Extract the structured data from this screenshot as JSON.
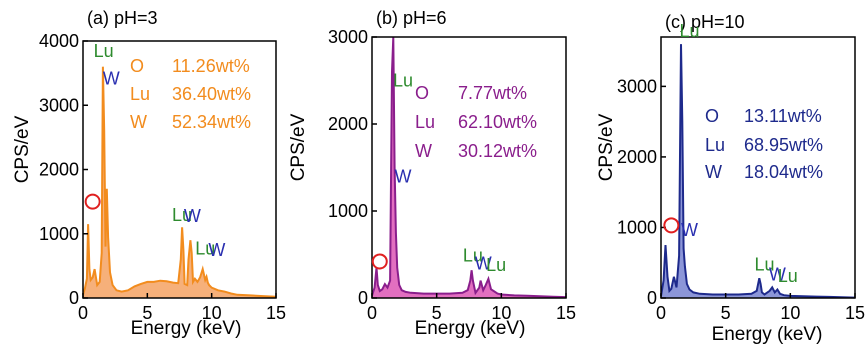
{
  "chart_data": [
    {
      "type": "area",
      "panel_label": "(a) pH=3",
      "xlabel": "Energy (keV)",
      "ylabel": "CPS/eV",
      "xlim": [
        0,
        15
      ],
      "ylim": [
        0,
        4000
      ],
      "xticks": [
        0,
        5,
        10,
        15
      ],
      "yticks": [
        0,
        1000,
        2000,
        3000,
        4000
      ],
      "color": "#F28C1E",
      "fill": "#F6B07A",
      "series": [
        {
          "x": [
            0,
            0.15,
            0.3,
            0.4,
            0.5,
            0.6,
            0.75,
            0.9,
            1.1,
            1.3,
            1.45,
            1.55,
            1.65,
            1.75,
            1.85,
            1.95,
            2.1,
            2.3,
            2.6,
            3,
            3.5,
            4,
            4.5,
            5,
            5.5,
            6,
            6.5,
            7,
            7.4,
            7.6,
            7.7,
            7.8,
            7.9,
            8.1,
            8.2,
            8.35,
            8.45,
            8.55,
            8.7,
            8.9,
            9.1,
            9.3,
            9.5,
            9.6,
            9.7,
            9.8,
            10,
            10.5,
            11,
            11.5,
            12,
            13,
            14,
            15
          ],
          "y": [
            50,
            150,
            300,
            1150,
            450,
            280,
            320,
            450,
            200,
            250,
            700,
            3600,
            2600,
            800,
            1700,
            950,
            400,
            200,
            120,
            100,
            120,
            180,
            220,
            250,
            250,
            270,
            260,
            240,
            230,
            600,
            1100,
            750,
            220,
            200,
            600,
            900,
            700,
            250,
            300,
            250,
            320,
            450,
            280,
            330,
            240,
            200,
            160,
            120,
            100,
            70,
            50,
            40,
            30,
            20
          ]
        }
      ],
      "composition": [
        {
          "element": "O",
          "value": "11.26wt%"
        },
        {
          "element": "Lu",
          "value": "36.40wt%"
        },
        {
          "element": "W",
          "value": "52.34wt%"
        }
      ],
      "annotations": [
        {
          "text": "Lu",
          "x": 1.6,
          "y": 3750,
          "color": "#2E8B2E"
        },
        {
          "text": "W",
          "x": 2.2,
          "y": 3320,
          "color": "#2A2FB0"
        },
        {
          "text": "Lu",
          "x": 7.7,
          "y": 1200,
          "color": "#2E8B2E"
        },
        {
          "text": "W",
          "x": 8.5,
          "y": 1180,
          "color": "#2A2FB0"
        },
        {
          "text": "Lu",
          "x": 9.5,
          "y": 680,
          "color": "#2E8B2E"
        },
        {
          "text": "W",
          "x": 10.4,
          "y": 650,
          "color": "#2A2FB0"
        }
      ],
      "o_marker": {
        "x": 0.75,
        "y": 1500
      }
    },
    {
      "type": "area",
      "panel_label": "(b) pH=6",
      "xlabel": "Energy (keV)",
      "ylabel": "CPS/eV",
      "xlim": [
        0,
        15
      ],
      "ylim": [
        0,
        3000
      ],
      "xticks": [
        0,
        5,
        10,
        15
      ],
      "yticks": [
        0,
        1000,
        2000,
        3000
      ],
      "color": "#8A1E8C",
      "fill": "#E26FC0",
      "series": [
        {
          "x": [
            0,
            0.2,
            0.35,
            0.45,
            0.6,
            0.8,
            1.0,
            1.2,
            1.4,
            1.55,
            1.65,
            1.75,
            1.85,
            1.95,
            2.1,
            2.3,
            2.6,
            3,
            4,
            5,
            6,
            7,
            7.4,
            7.6,
            7.7,
            7.8,
            8,
            8.3,
            8.4,
            8.6,
            8.8,
            9,
            9.2,
            9.4,
            9.7,
            10,
            11,
            12,
            13,
            14,
            15
          ],
          "y": [
            30,
            120,
            350,
            150,
            80,
            100,
            160,
            120,
            200,
            2600,
            3000,
            1500,
            750,
            350,
            150,
            90,
            70,
            60,
            50,
            50,
            50,
            60,
            90,
            200,
            320,
            200,
            60,
            120,
            200,
            90,
            150,
            220,
            100,
            80,
            50,
            40,
            30,
            25,
            20,
            15,
            10
          ]
        }
      ],
      "composition": [
        {
          "element": "O",
          "value": "7.77wt%"
        },
        {
          "element": "Lu",
          "value": "62.10wt%"
        },
        {
          "element": "W",
          "value": "30.12wt%"
        }
      ],
      "annotations": [
        {
          "text": "Lu",
          "x": 2.4,
          "y": 2430,
          "color": "#2E8B2E"
        },
        {
          "text": "W",
          "x": 2.4,
          "y": 1330,
          "color": "#2A2FB0"
        },
        {
          "text": "Lu",
          "x": 7.8,
          "y": 420,
          "color": "#2E8B2E"
        },
        {
          "text": "W",
          "x": 8.6,
          "y": 330,
          "color": "#2A2FB0"
        },
        {
          "text": "Lu",
          "x": 9.6,
          "y": 310,
          "color": "#2E8B2E"
        }
      ],
      "o_marker": {
        "x": 0.6,
        "y": 420
      }
    },
    {
      "type": "area",
      "panel_label": "(c) pH=10",
      "xlabel": "Energy (keV)",
      "ylabel": "CPS/eV",
      "xlim": [
        0,
        15
      ],
      "ylim": [
        0,
        3700
      ],
      "xticks": [
        0,
        5,
        10,
        15
      ],
      "yticks": [
        0,
        1000,
        2000,
        3000
      ],
      "color": "#1E2A8C",
      "fill": "#8C96D8",
      "series": [
        {
          "x": [
            0,
            0.2,
            0.35,
            0.5,
            0.65,
            0.8,
            1.0,
            1.2,
            1.4,
            1.55,
            1.65,
            1.75,
            1.85,
            2.0,
            2.2,
            2.5,
            3,
            4,
            5,
            6,
            7,
            7.4,
            7.6,
            7.7,
            7.8,
            8,
            8.4,
            8.6,
            8.8,
            9.0,
            9.2,
            9.5,
            10,
            11,
            12,
            13,
            14,
            15
          ],
          "y": [
            30,
            250,
            750,
            300,
            100,
            130,
            300,
            150,
            600,
            3600,
            2500,
            700,
            450,
            200,
            120,
            80,
            60,
            50,
            50,
            50,
            60,
            100,
            280,
            200,
            80,
            50,
            100,
            150,
            80,
            120,
            60,
            40,
            30,
            25,
            20,
            15,
            10,
            5
          ]
        }
      ],
      "composition": [
        {
          "element": "O",
          "value": "13.11wt%"
        },
        {
          "element": "Lu",
          "value": "68.95wt%"
        },
        {
          "element": "W",
          "value": "18.04wt%"
        }
      ],
      "annotations": [
        {
          "text": "Lu",
          "x": 2.2,
          "y": 3700,
          "color": "#2E8B2E"
        },
        {
          "text": "W",
          "x": 2.2,
          "y": 880,
          "color": "#2A2FB0"
        },
        {
          "text": "Lu",
          "x": 8.0,
          "y": 390,
          "color": "#2E8B2E"
        },
        {
          "text": "W",
          "x": 9.0,
          "y": 250,
          "color": "#2A2FB0"
        },
        {
          "text": "Lu",
          "x": 9.8,
          "y": 230,
          "color": "#2E8B2E"
        }
      ],
      "o_marker": {
        "x": 0.8,
        "y": 1030
      }
    }
  ]
}
